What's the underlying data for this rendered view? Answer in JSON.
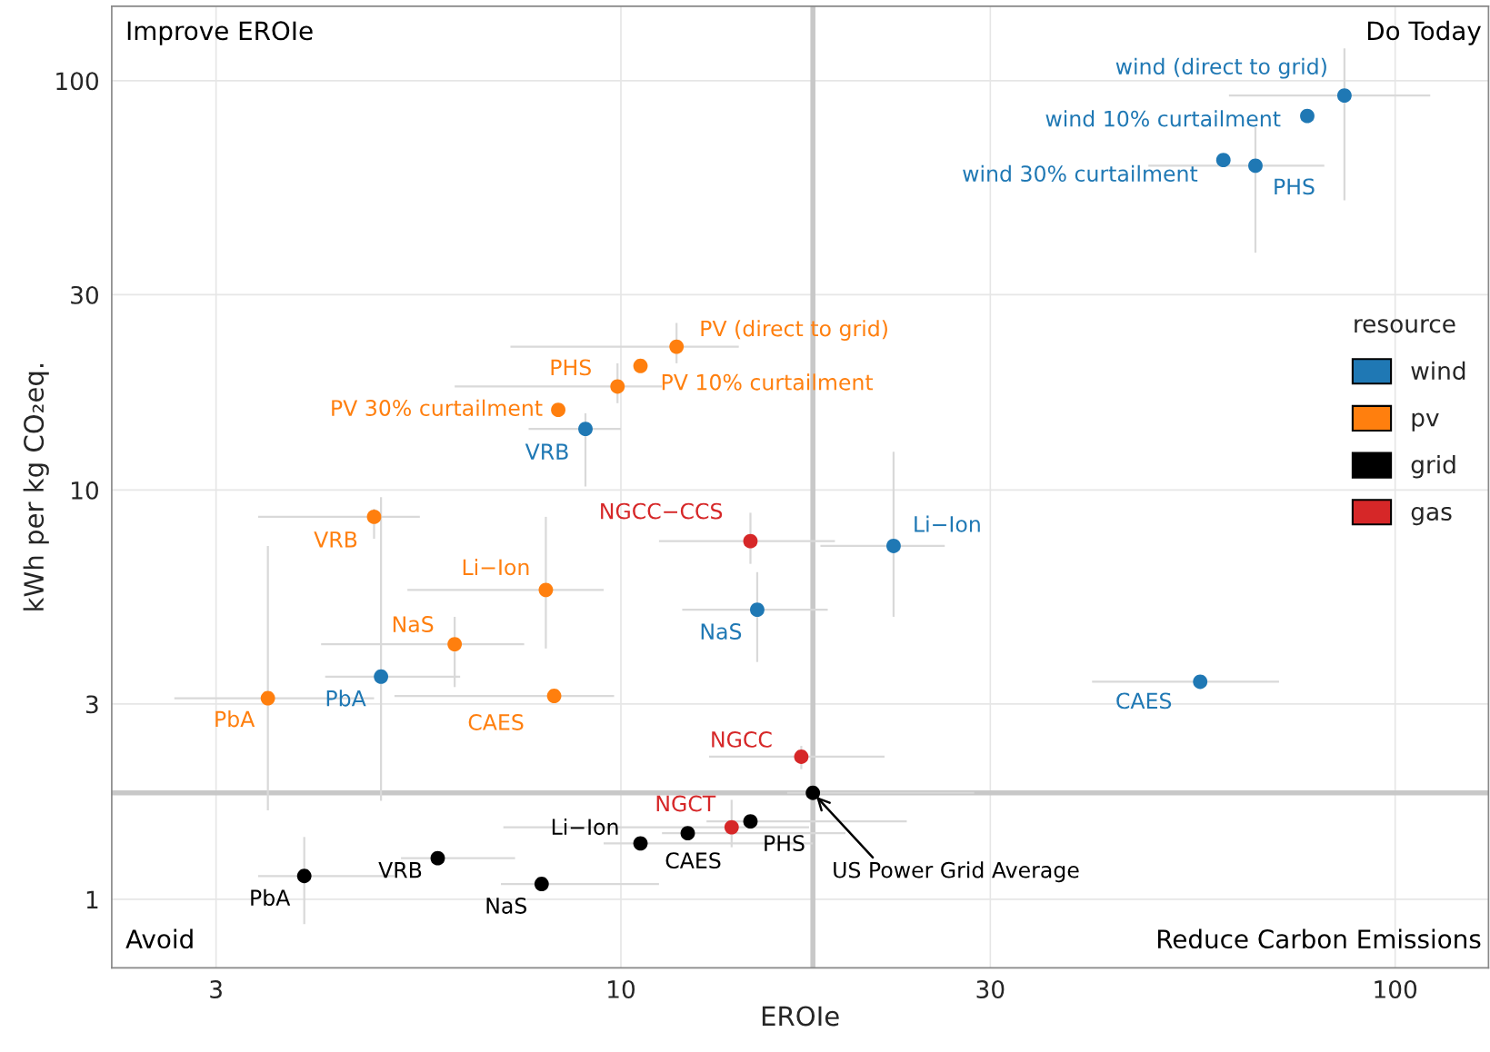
{
  "chart_data": {
    "type": "scatter",
    "xlabel": "EROIe",
    "ylabel": "kWh per kg CO₂eq.",
    "legend_title": "resource",
    "legend": "right",
    "log": "xy",
    "grid": true,
    "marker": "circle",
    "xlim": [
      2.2,
      132
    ],
    "ylim": [
      0.68,
      152
    ],
    "xticks": [
      3,
      10,
      30,
      100
    ],
    "yticks": [
      1,
      3,
      10,
      30,
      100
    ],
    "series": [
      {
        "name": "wind",
        "color": "#1f78b4",
        "x": [
          86,
          77,
          60,
          66,
          9.0,
          22.5,
          15.0,
          4.9,
          56
        ],
        "values": [
          92,
          82,
          64,
          62,
          14.1,
          7.3,
          5.1,
          3.5,
          3.4
        ],
        "xerrors": [
          [
            61,
            111
          ],
          null,
          null,
          [
            48,
            81
          ],
          [
            7.6,
            10.0
          ],
          [
            18.1,
            26.2
          ],
          [
            12.0,
            18.5
          ],
          [
            4.15,
            6.2
          ],
          [
            40.6,
            70.8
          ]
        ],
        "errors": [
          [
            51,
            120
          ],
          null,
          null,
          [
            38,
            77
          ],
          [
            10.2,
            15.4
          ],
          [
            4.9,
            12.4
          ],
          [
            3.8,
            6.3
          ],
          [
            1.74,
            9.6
          ],
          null
        ]
      },
      {
        "name": "pv",
        "color": "#ff7f0e",
        "x": [
          11.8,
          10.6,
          9.9,
          8.3,
          4.8,
          8.0,
          6.1,
          3.5,
          8.2
        ],
        "values": [
          22.4,
          20.1,
          17.9,
          15.7,
          8.6,
          5.7,
          4.2,
          3.1,
          3.14
        ],
        "xerrors": [
          [
            7.2,
            14.2
          ],
          null,
          [
            6.1,
            11.3
          ],
          null,
          [
            3.4,
            5.5
          ],
          [
            5.3,
            9.5
          ],
          [
            4.1,
            7.5
          ],
          [
            2.65,
            4.8
          ],
          [
            5.1,
            9.8
          ]
        ],
        "errors": [
          [
            20.4,
            25.6
          ],
          null,
          [
            16.3,
            20.4
          ],
          null,
          [
            7.6,
            9.0
          ],
          [
            4.1,
            8.6
          ],
          [
            3.3,
            4.9
          ],
          [
            1.65,
            7.3
          ],
          null
        ]
      },
      {
        "name": "grid",
        "color": "#000000",
        "x": [
          17.7,
          14.7,
          12.2,
          10.6,
          5.8,
          7.9,
          3.9
        ],
        "values": [
          1.82,
          1.55,
          1.45,
          1.37,
          1.26,
          1.09,
          1.14
        ],
        "xerrors": [
          [
            16.4,
            28.6
          ],
          [
            12.9,
            23.4
          ],
          [
            11.3,
            19.5
          ],
          [
            9.5,
            17.7
          ],
          [
            5.2,
            7.3
          ],
          [
            7.0,
            11.2
          ],
          [
            3.4,
            5.1
          ]
        ],
        "errors": [
          null,
          null,
          null,
          null,
          null,
          null,
          [
            0.87,
            1.42
          ]
        ]
      },
      {
        "name": "gas",
        "color": "#d62728",
        "x": [
          14.7,
          17.1,
          13.9
        ],
        "values": [
          7.5,
          2.23,
          1.5
        ],
        "xerrors": [
          [
            11.2,
            18.9
          ],
          [
            13.0,
            21.9
          ],
          [
            7.05,
            17.5
          ]
        ],
        "errors": [
          [
            6.6,
            8.8
          ],
          [
            2.08,
            2.37
          ],
          [
            1.34,
            1.75
          ]
        ]
      }
    ],
    "ref_lines": [
      {
        "axis": "x",
        "value": 17.7,
        "color": "#c8c8c8"
      },
      {
        "axis": "y",
        "value": 1.82,
        "color": "#c8c8c8"
      }
    ],
    "annotations": [
      {
        "text": "wind (direct to grid)",
        "x": 86,
        "y": 92
      },
      {
        "text": "wind 10% curtailment",
        "x": 77,
        "y": 82
      },
      {
        "text": "wind 30% curtailment",
        "x": 60,
        "y": 64
      },
      {
        "text": "PHS",
        "x": 66,
        "y": 62
      },
      {
        "text": "VRB",
        "x": 9.0,
        "y": 14.1
      },
      {
        "text": "Li−Ion",
        "x": 22.5,
        "y": 7.3
      },
      {
        "text": "NaS",
        "x": 15.0,
        "y": 5.1
      },
      {
        "text": "PbA",
        "x": 4.9,
        "y": 3.5
      },
      {
        "text": "CAES",
        "x": 56,
        "y": 3.4
      },
      {
        "text": "PV (direct to grid)",
        "x": 11.8,
        "y": 22.4
      },
      {
        "text": "PV 10% curtailment",
        "x": 10.6,
        "y": 20.1
      },
      {
        "text": "PHS",
        "x": 9.9,
        "y": 17.9
      },
      {
        "text": "PV 30% curtailment",
        "x": 8.3,
        "y": 15.7
      },
      {
        "text": "VRB",
        "x": 4.8,
        "y": 8.6
      },
      {
        "text": "Li−Ion",
        "x": 8.0,
        "y": 5.7
      },
      {
        "text": "NaS",
        "x": 6.1,
        "y": 4.2
      },
      {
        "text": "PbA",
        "x": 3.5,
        "y": 3.1
      },
      {
        "text": "CAES",
        "x": 8.2,
        "y": 3.14
      },
      {
        "text": "NGCC−CCS",
        "x": 14.7,
        "y": 7.5
      },
      {
        "text": "NGCC",
        "x": 17.1,
        "y": 2.23
      },
      {
        "text": "NGCT",
        "x": 13.9,
        "y": 1.5
      },
      {
        "text": "Li−Ion",
        "x": 10.6,
        "y": 1.37
      },
      {
        "text": "CAES",
        "x": 12.2,
        "y": 1.45
      },
      {
        "text": "PHS",
        "x": 14.7,
        "y": 1.55
      },
      {
        "text": "VRB",
        "x": 5.8,
        "y": 1.26
      },
      {
        "text": "NaS",
        "x": 7.9,
        "y": 1.09
      },
      {
        "text": "PbA",
        "x": 3.9,
        "y": 1.14
      },
      {
        "text": "US Power Grid Average",
        "x": 17.7,
        "y": 1.82
      },
      "Improve EROIe",
      "Do Today",
      "Avoid",
      "Reduce Carbon Emissions"
    ]
  }
}
